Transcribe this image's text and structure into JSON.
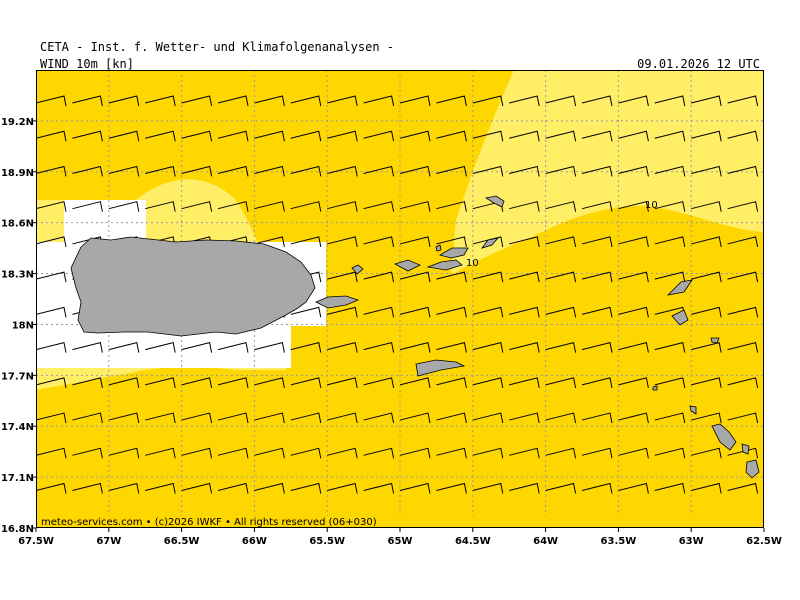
{
  "header": {
    "title": "CETA - Inst. f. Wetter- und Klimafolgenanalysen -",
    "field": "WIND 10m [kn]",
    "datetime": "09.01.2026 12 UTC"
  },
  "footer": {
    "credit": "meteo-services.com • (c)2026 IWKF • All rights reserved (06+030)"
  },
  "axes": {
    "lon_ticks": [
      "67.5W",
      "67W",
      "66.5W",
      "66W",
      "65.5W",
      "65W",
      "64.5W",
      "64W",
      "63.5W",
      "63W",
      "62.5W"
    ],
    "lat_ticks": [
      "19.2N",
      "18.9N",
      "18.6N",
      "18.3N",
      "18N",
      "17.7N",
      "17.4N",
      "17.1N",
      "16.8N"
    ],
    "lon_range": [
      -67.5,
      -62.5
    ],
    "lat_range": [
      16.8,
      19.5
    ]
  },
  "contour_labels": [
    "10",
    "10"
  ],
  "colors": {
    "band_lt10": "#FFEE66",
    "band_gt10": "#FFD700",
    "land": "#A8A8A8",
    "grid": "#9999aa"
  }
}
